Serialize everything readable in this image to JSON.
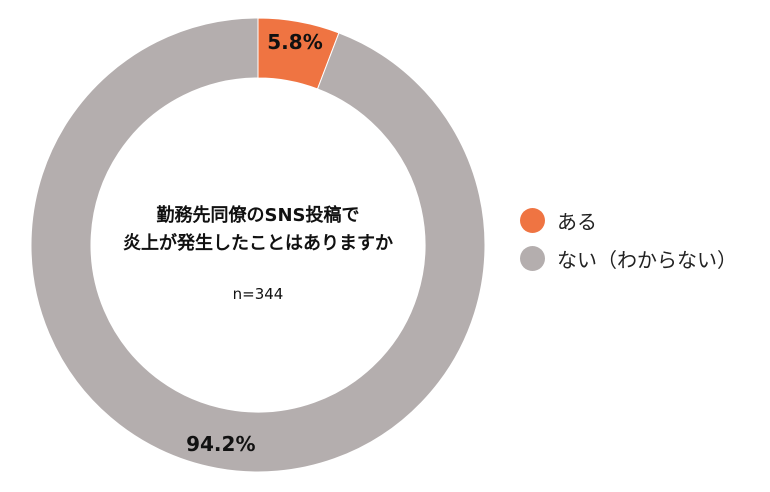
{
  "chart_data": {
    "type": "pie",
    "donut": true,
    "title_lines": [
      "勤務先同僚のSNS投稿で",
      "炎上が発生したことはありますか"
    ],
    "sample_size": "n=344",
    "slices": [
      {
        "label": "ある",
        "value": 5.8,
        "display": "5.8%",
        "color": "#ef7442"
      },
      {
        "label": "ない（わからない）",
        "value": 94.2,
        "display": "94.2%",
        "color": "#b4aeae"
      }
    ],
    "legend_position": "right",
    "start": "top",
    "direction": "clockwise"
  }
}
